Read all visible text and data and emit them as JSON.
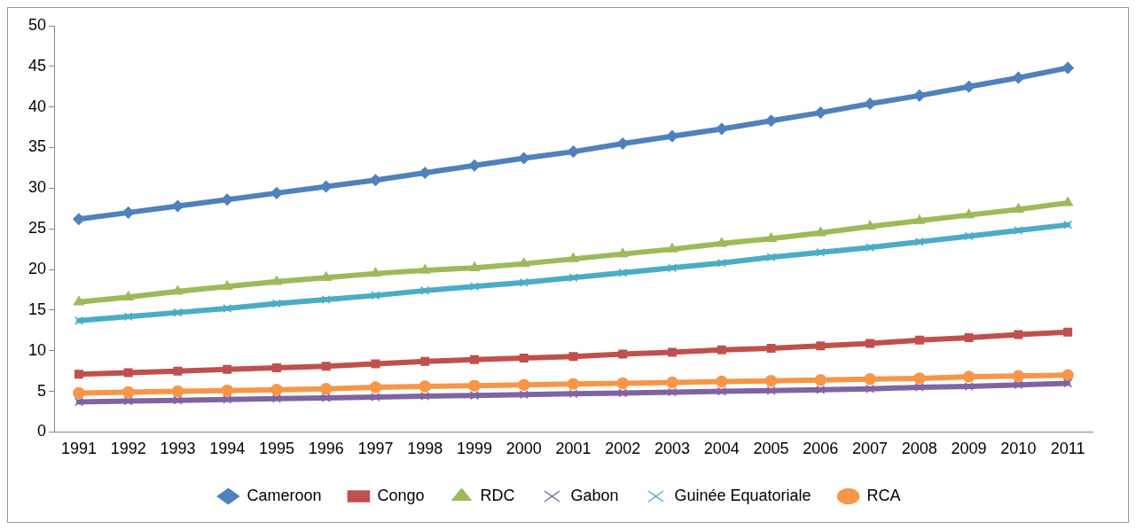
{
  "chart_data": {
    "type": "line",
    "categories": [
      "1991",
      "1992",
      "1993",
      "1994",
      "1995",
      "1996",
      "1997",
      "1998",
      "1999",
      "2000",
      "2001",
      "2002",
      "2003",
      "2004",
      "2005",
      "2006",
      "2007",
      "2008",
      "2009",
      "2010",
      "2011"
    ],
    "series": [
      {
        "name": "Cameroon",
        "color": "#4f81bd",
        "marker": "diamond",
        "values": [
          26.2,
          27.0,
          27.8,
          28.6,
          29.4,
          30.2,
          31.0,
          31.9,
          32.8,
          33.7,
          34.5,
          35.5,
          36.4,
          37.3,
          38.3,
          39.3,
          40.4,
          41.4,
          42.5,
          43.6,
          44.8
        ]
      },
      {
        "name": "Congo",
        "color": "#c0504d",
        "marker": "square",
        "values": [
          7.1,
          7.3,
          7.5,
          7.7,
          7.9,
          8.1,
          8.4,
          8.7,
          8.9,
          9.1,
          9.3,
          9.6,
          9.8,
          10.1,
          10.3,
          10.6,
          10.9,
          11.3,
          11.6,
          12.0,
          12.3
        ]
      },
      {
        "name": "RDC",
        "color": "#9bbb59",
        "marker": "triangle",
        "values": [
          16.0,
          16.6,
          17.3,
          17.9,
          18.5,
          19.0,
          19.5,
          19.9,
          20.2,
          20.7,
          21.3,
          21.9,
          22.5,
          23.2,
          23.8,
          24.5,
          25.3,
          26.0,
          26.7,
          27.4,
          28.2
        ]
      },
      {
        "name": "Gabon",
        "color": "#8064a2",
        "marker": "cross",
        "values": [
          3.7,
          3.8,
          3.9,
          4.0,
          4.1,
          4.2,
          4.3,
          4.4,
          4.5,
          4.6,
          4.7,
          4.8,
          4.9,
          5.0,
          5.1,
          5.2,
          5.3,
          5.5,
          5.6,
          5.8,
          6.0
        ]
      },
      {
        "name": "Guinée Equatoriale",
        "color": "#4bacc6",
        "marker": "cross",
        "values": [
          13.7,
          14.2,
          14.7,
          15.2,
          15.8,
          16.3,
          16.8,
          17.4,
          17.9,
          18.4,
          19.0,
          19.6,
          20.2,
          20.8,
          21.5,
          22.1,
          22.7,
          23.4,
          24.1,
          24.8,
          25.5
        ]
      },
      {
        "name": "RCA",
        "color": "#f79646",
        "marker": "circle",
        "values": [
          4.8,
          4.9,
          5.0,
          5.1,
          5.2,
          5.3,
          5.5,
          5.6,
          5.7,
          5.8,
          5.9,
          6.0,
          6.1,
          6.2,
          6.3,
          6.4,
          6.5,
          6.6,
          6.8,
          6.9,
          7.0
        ]
      }
    ],
    "ylim": [
      0,
      50
    ],
    "yticks": [
      0,
      5,
      10,
      15,
      20,
      25,
      30,
      35,
      40,
      45,
      50
    ],
    "grid": false,
    "legend": "bottom"
  }
}
